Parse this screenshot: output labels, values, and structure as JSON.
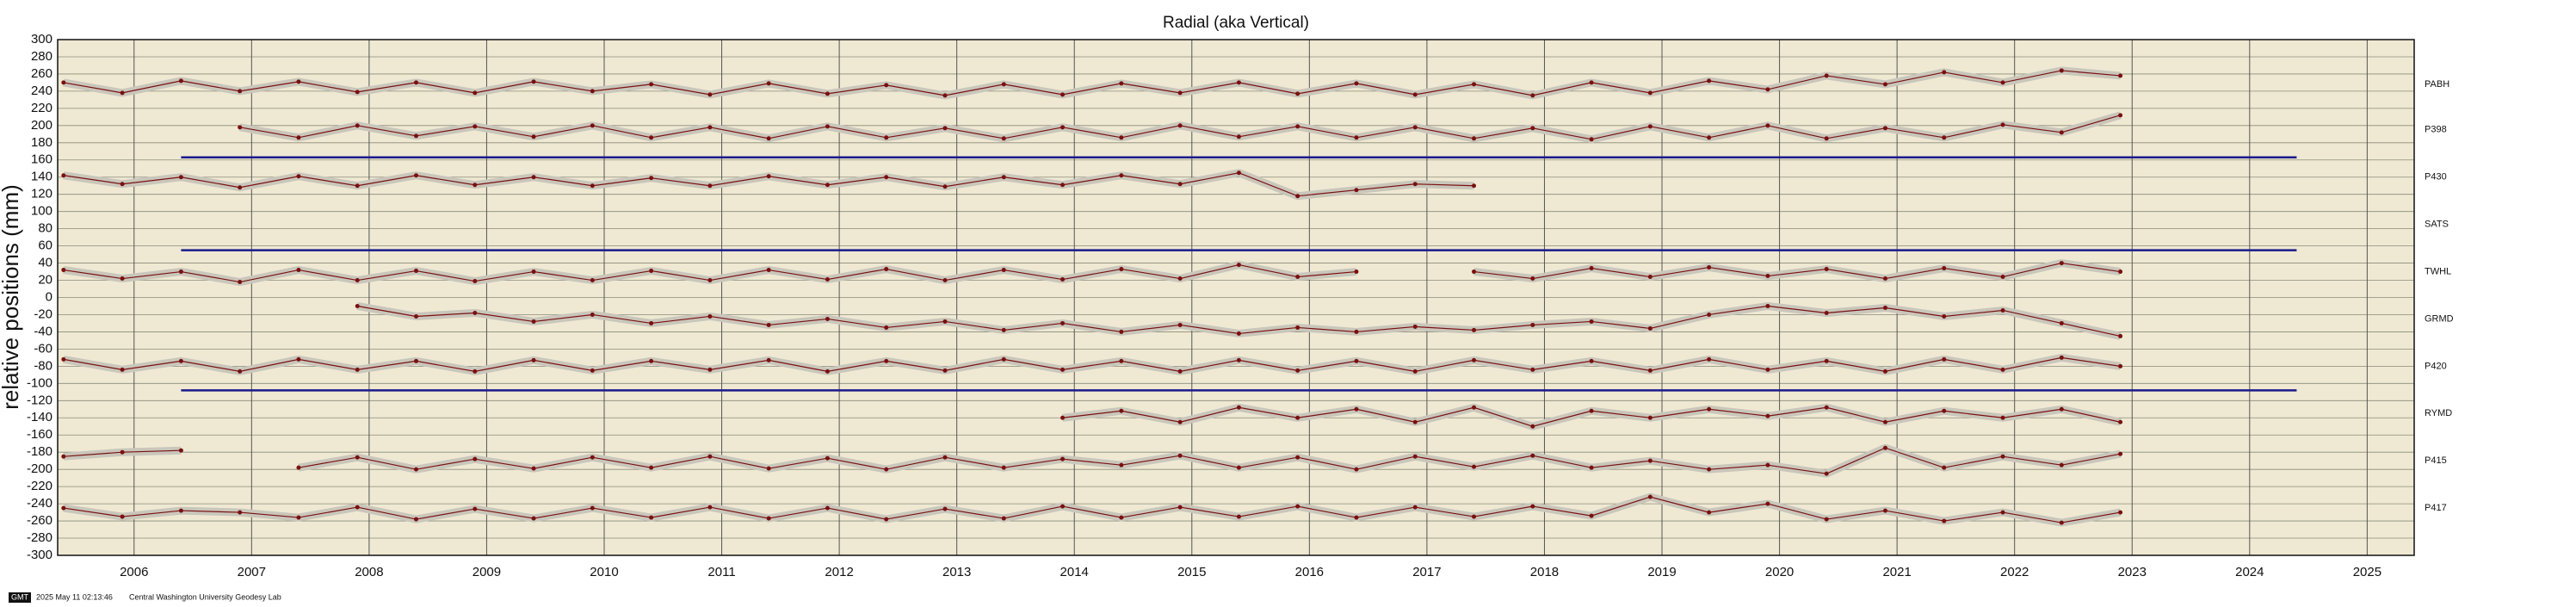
{
  "chart_data": {
    "type": "scatter",
    "title": "Radial (aka Vertical)",
    "y_label": "relative positions (mm)",
    "footer": {
      "logo": "GMT",
      "timestamp": "2025 May 11 02:13:46",
      "credit": "Central Washington University Geodesy Lab"
    },
    "xlim": [
      2005.35,
      2025.4
    ],
    "xticks": [
      2006,
      2007,
      2008,
      2009,
      2010,
      2011,
      2012,
      2013,
      2014,
      2015,
      2016,
      2017,
      2018,
      2019,
      2020,
      2021,
      2022,
      2023,
      2024,
      2025
    ],
    "ylim": [
      -300,
      300
    ],
    "yticks": [
      -300,
      -280,
      -260,
      -240,
      -220,
      -200,
      -180,
      -160,
      -140,
      -120,
      -100,
      -80,
      -60,
      -40,
      -20,
      0,
      20,
      40,
      60,
      80,
      100,
      120,
      140,
      160,
      180,
      200,
      220,
      240,
      260,
      280,
      300
    ],
    "grid": true,
    "x": [
      2005.4,
      2005.9,
      2006.4,
      2006.9,
      2007.4,
      2007.9,
      2008.4,
      2008.9,
      2009.4,
      2009.9,
      2010.4,
      2010.9,
      2011.4,
      2011.9,
      2012.4,
      2012.9,
      2013.4,
      2013.9,
      2014.4,
      2014.9,
      2015.4,
      2015.9,
      2016.4,
      2016.9,
      2017.4,
      2017.9,
      2018.4,
      2018.9,
      2019.4,
      2019.9,
      2020.4,
      2020.9,
      2021.4,
      2021.9,
      2022.4,
      2022.9
    ],
    "series": [
      {
        "name": "PABH",
        "color": "#7a1010",
        "values": [
          250,
          238,
          252,
          240,
          251,
          239,
          250,
          238,
          251,
          240,
          248,
          236,
          249,
          237,
          247,
          235,
          248,
          236,
          249,
          238,
          250,
          237,
          249,
          236,
          248,
          235,
          250,
          238,
          252,
          242,
          258,
          248,
          262,
          250,
          264,
          258
        ]
      },
      {
        "name": "P398",
        "color": "#7a1010",
        "values": [
          null,
          null,
          null,
          198,
          186,
          200,
          188,
          199,
          187,
          200,
          186,
          198,
          185,
          199,
          186,
          197,
          185,
          198,
          186,
          200,
          187,
          199,
          186,
          198,
          185,
          197,
          184,
          199,
          186,
          200,
          185,
          197,
          186,
          201,
          192,
          212
        ]
      },
      {
        "name": "P430",
        "color": "#7a1010",
        "values": [
          142,
          132,
          140,
          128,
          141,
          130,
          142,
          131,
          140,
          130,
          139,
          130,
          141,
          131,
          140,
          129,
          140,
          131,
          142,
          132,
          145,
          118,
          125,
          132,
          130,
          null,
          null,
          null,
          null,
          null,
          null,
          null,
          null,
          null,
          null,
          null
        ]
      },
      {
        "name": "TWHL",
        "color": "#7a1010",
        "values": [
          32,
          22,
          30,
          18,
          32,
          20,
          31,
          19,
          30,
          20,
          31,
          20,
          32,
          21,
          33,
          20,
          32,
          21,
          33,
          22,
          38,
          24,
          30,
          null,
          30,
          22,
          34,
          24,
          35,
          25,
          33,
          22,
          34,
          24,
          40,
          30
        ]
      },
      {
        "name": "GRMD",
        "color": "#7a1010",
        "values": [
          null,
          null,
          null,
          null,
          null,
          -10,
          -22,
          -18,
          -28,
          -20,
          -30,
          -22,
          -32,
          -25,
          -35,
          -28,
          -38,
          -30,
          -40,
          -32,
          -42,
          -35,
          -40,
          -34,
          -38,
          -32,
          -28,
          -36,
          -20,
          -10,
          -18,
          -12,
          -22,
          -15,
          -30,
          -45
        ]
      },
      {
        "name": "P420",
        "color": "#7a1010",
        "values": [
          -72,
          -84,
          -74,
          -86,
          -72,
          -84,
          -74,
          -86,
          -73,
          -85,
          -74,
          -84,
          -73,
          -86,
          -74,
          -85,
          -72,
          -84,
          -74,
          -86,
          -73,
          -85,
          -74,
          -86,
          -73,
          -84,
          -74,
          -85,
          -72,
          -84,
          -74,
          -86,
          -72,
          -84,
          -70,
          -80
        ]
      },
      {
        "name": "RYMD",
        "color": "#7a1010",
        "values": [
          null,
          null,
          null,
          null,
          null,
          null,
          null,
          null,
          null,
          null,
          null,
          null,
          null,
          null,
          null,
          null,
          null,
          -140,
          -132,
          -145,
          -128,
          -140,
          -130,
          -145,
          -128,
          -150,
          -132,
          -140,
          -130,
          -138,
          -128,
          -145,
          -132,
          -140,
          -130,
          -145
        ]
      },
      {
        "name": "P415",
        "color": "#7a1010",
        "values": [
          -185,
          -180,
          -178,
          null,
          -198,
          -186,
          -200,
          -188,
          -199,
          -186,
          -198,
          -185,
          -199,
          -187,
          -200,
          -186,
          -198,
          -188,
          -195,
          -184,
          -198,
          -186,
          -200,
          -185,
          -197,
          -184,
          -198,
          -190,
          -200,
          -195,
          -205,
          -175,
          -198,
          -185,
          -195,
          -182
        ]
      },
      {
        "name": "P417",
        "color": "#7a1010",
        "values": [
          -245,
          -255,
          -248,
          -250,
          -256,
          -244,
          -258,
          -246,
          -257,
          -245,
          -256,
          -244,
          -257,
          -245,
          -258,
          -246,
          -257,
          -243,
          -256,
          -244,
          -255,
          -243,
          -256,
          -244,
          -255,
          -243,
          -254,
          -232,
          -250,
          -240,
          -258,
          -248,
          -260,
          -250,
          -262,
          -250
        ]
      }
    ],
    "stations": [
      {
        "name": "PABH",
        "level": 248
      },
      {
        "name": "P398",
        "level": 195
      },
      {
        "name": "P430",
        "level": 140
      },
      {
        "name": "SATS",
        "level": 85
      },
      {
        "name": "TWHL",
        "level": 30
      },
      {
        "name": "GRMD",
        "level": -25
      },
      {
        "name": "P420",
        "level": -80
      },
      {
        "name": "RYMD",
        "level": -135
      },
      {
        "name": "P415",
        "level": -190
      },
      {
        "name": "P417",
        "level": -245
      }
    ],
    "separators": [
      {
        "y": 163,
        "x": [
          2006.4,
          2024.4
        ],
        "color": "#1a1a8c"
      },
      {
        "y": 55,
        "x": [
          2006.4,
          2024.4
        ],
        "color": "#1a1a8c"
      },
      {
        "y": -108,
        "x": [
          2006.4,
          2024.4
        ],
        "color": "#1a1a8c"
      }
    ]
  }
}
